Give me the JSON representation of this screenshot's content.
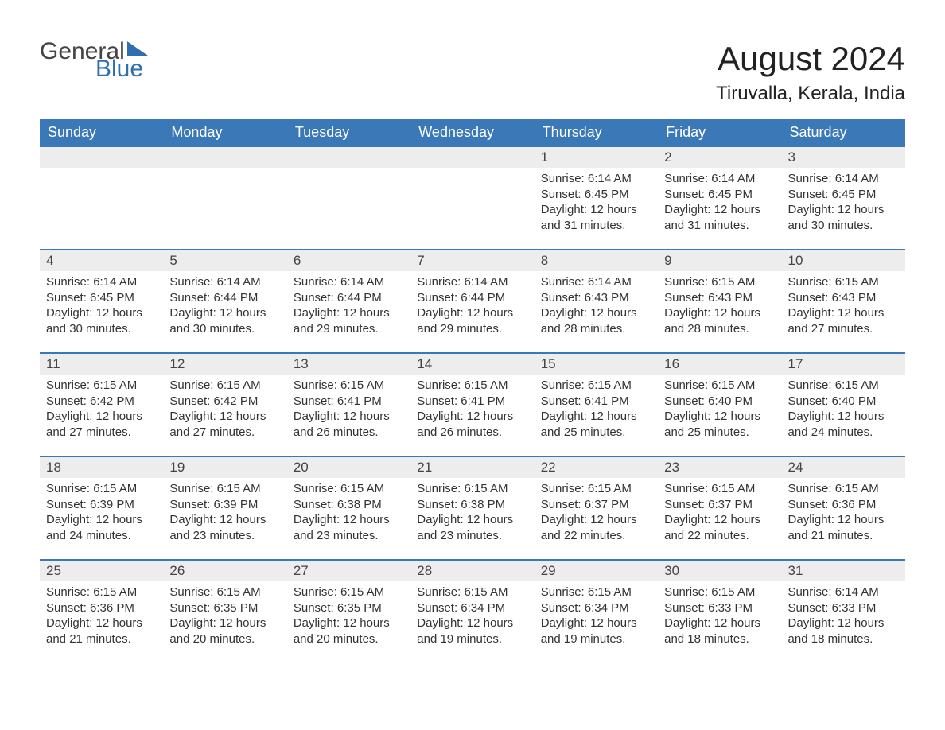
{
  "logo": {
    "word1": "General",
    "word2": "Blue",
    "word1_color": "#444444",
    "word2_color": "#2f6fb0",
    "triangle_color": "#2f6fb0"
  },
  "title": "August 2024",
  "location": "Tiruvalla, Kerala, India",
  "colors": {
    "header_bg": "#3a78b8",
    "header_text": "#ffffff",
    "week_border": "#3a78b8",
    "daynum_bg": "#ededed",
    "text": "#333333",
    "background": "#ffffff"
  },
  "fonts": {
    "title_size": 42,
    "location_size": 24,
    "weekday_size": 18,
    "daynum_size": 17,
    "body_size": 15
  },
  "weekdays": [
    "Sunday",
    "Monday",
    "Tuesday",
    "Wednesday",
    "Thursday",
    "Friday",
    "Saturday"
  ],
  "weeks": [
    [
      null,
      null,
      null,
      null,
      {
        "day": "1",
        "sunrise": "Sunrise: 6:14 AM",
        "sunset": "Sunset: 6:45 PM",
        "daylight1": "Daylight: 12 hours",
        "daylight2": "and 31 minutes."
      },
      {
        "day": "2",
        "sunrise": "Sunrise: 6:14 AM",
        "sunset": "Sunset: 6:45 PM",
        "daylight1": "Daylight: 12 hours",
        "daylight2": "and 31 minutes."
      },
      {
        "day": "3",
        "sunrise": "Sunrise: 6:14 AM",
        "sunset": "Sunset: 6:45 PM",
        "daylight1": "Daylight: 12 hours",
        "daylight2": "and 30 minutes."
      }
    ],
    [
      {
        "day": "4",
        "sunrise": "Sunrise: 6:14 AM",
        "sunset": "Sunset: 6:45 PM",
        "daylight1": "Daylight: 12 hours",
        "daylight2": "and 30 minutes."
      },
      {
        "day": "5",
        "sunrise": "Sunrise: 6:14 AM",
        "sunset": "Sunset: 6:44 PM",
        "daylight1": "Daylight: 12 hours",
        "daylight2": "and 30 minutes."
      },
      {
        "day": "6",
        "sunrise": "Sunrise: 6:14 AM",
        "sunset": "Sunset: 6:44 PM",
        "daylight1": "Daylight: 12 hours",
        "daylight2": "and 29 minutes."
      },
      {
        "day": "7",
        "sunrise": "Sunrise: 6:14 AM",
        "sunset": "Sunset: 6:44 PM",
        "daylight1": "Daylight: 12 hours",
        "daylight2": "and 29 minutes."
      },
      {
        "day": "8",
        "sunrise": "Sunrise: 6:14 AM",
        "sunset": "Sunset: 6:43 PM",
        "daylight1": "Daylight: 12 hours",
        "daylight2": "and 28 minutes."
      },
      {
        "day": "9",
        "sunrise": "Sunrise: 6:15 AM",
        "sunset": "Sunset: 6:43 PM",
        "daylight1": "Daylight: 12 hours",
        "daylight2": "and 28 minutes."
      },
      {
        "day": "10",
        "sunrise": "Sunrise: 6:15 AM",
        "sunset": "Sunset: 6:43 PM",
        "daylight1": "Daylight: 12 hours",
        "daylight2": "and 27 minutes."
      }
    ],
    [
      {
        "day": "11",
        "sunrise": "Sunrise: 6:15 AM",
        "sunset": "Sunset: 6:42 PM",
        "daylight1": "Daylight: 12 hours",
        "daylight2": "and 27 minutes."
      },
      {
        "day": "12",
        "sunrise": "Sunrise: 6:15 AM",
        "sunset": "Sunset: 6:42 PM",
        "daylight1": "Daylight: 12 hours",
        "daylight2": "and 27 minutes."
      },
      {
        "day": "13",
        "sunrise": "Sunrise: 6:15 AM",
        "sunset": "Sunset: 6:41 PM",
        "daylight1": "Daylight: 12 hours",
        "daylight2": "and 26 minutes."
      },
      {
        "day": "14",
        "sunrise": "Sunrise: 6:15 AM",
        "sunset": "Sunset: 6:41 PM",
        "daylight1": "Daylight: 12 hours",
        "daylight2": "and 26 minutes."
      },
      {
        "day": "15",
        "sunrise": "Sunrise: 6:15 AM",
        "sunset": "Sunset: 6:41 PM",
        "daylight1": "Daylight: 12 hours",
        "daylight2": "and 25 minutes."
      },
      {
        "day": "16",
        "sunrise": "Sunrise: 6:15 AM",
        "sunset": "Sunset: 6:40 PM",
        "daylight1": "Daylight: 12 hours",
        "daylight2": "and 25 minutes."
      },
      {
        "day": "17",
        "sunrise": "Sunrise: 6:15 AM",
        "sunset": "Sunset: 6:40 PM",
        "daylight1": "Daylight: 12 hours",
        "daylight2": "and 24 minutes."
      }
    ],
    [
      {
        "day": "18",
        "sunrise": "Sunrise: 6:15 AM",
        "sunset": "Sunset: 6:39 PM",
        "daylight1": "Daylight: 12 hours",
        "daylight2": "and 24 minutes."
      },
      {
        "day": "19",
        "sunrise": "Sunrise: 6:15 AM",
        "sunset": "Sunset: 6:39 PM",
        "daylight1": "Daylight: 12 hours",
        "daylight2": "and 23 minutes."
      },
      {
        "day": "20",
        "sunrise": "Sunrise: 6:15 AM",
        "sunset": "Sunset: 6:38 PM",
        "daylight1": "Daylight: 12 hours",
        "daylight2": "and 23 minutes."
      },
      {
        "day": "21",
        "sunrise": "Sunrise: 6:15 AM",
        "sunset": "Sunset: 6:38 PM",
        "daylight1": "Daylight: 12 hours",
        "daylight2": "and 23 minutes."
      },
      {
        "day": "22",
        "sunrise": "Sunrise: 6:15 AM",
        "sunset": "Sunset: 6:37 PM",
        "daylight1": "Daylight: 12 hours",
        "daylight2": "and 22 minutes."
      },
      {
        "day": "23",
        "sunrise": "Sunrise: 6:15 AM",
        "sunset": "Sunset: 6:37 PM",
        "daylight1": "Daylight: 12 hours",
        "daylight2": "and 22 minutes."
      },
      {
        "day": "24",
        "sunrise": "Sunrise: 6:15 AM",
        "sunset": "Sunset: 6:36 PM",
        "daylight1": "Daylight: 12 hours",
        "daylight2": "and 21 minutes."
      }
    ],
    [
      {
        "day": "25",
        "sunrise": "Sunrise: 6:15 AM",
        "sunset": "Sunset: 6:36 PM",
        "daylight1": "Daylight: 12 hours",
        "daylight2": "and 21 minutes."
      },
      {
        "day": "26",
        "sunrise": "Sunrise: 6:15 AM",
        "sunset": "Sunset: 6:35 PM",
        "daylight1": "Daylight: 12 hours",
        "daylight2": "and 20 minutes."
      },
      {
        "day": "27",
        "sunrise": "Sunrise: 6:15 AM",
        "sunset": "Sunset: 6:35 PM",
        "daylight1": "Daylight: 12 hours",
        "daylight2": "and 20 minutes."
      },
      {
        "day": "28",
        "sunrise": "Sunrise: 6:15 AM",
        "sunset": "Sunset: 6:34 PM",
        "daylight1": "Daylight: 12 hours",
        "daylight2": "and 19 minutes."
      },
      {
        "day": "29",
        "sunrise": "Sunrise: 6:15 AM",
        "sunset": "Sunset: 6:34 PM",
        "daylight1": "Daylight: 12 hours",
        "daylight2": "and 19 minutes."
      },
      {
        "day": "30",
        "sunrise": "Sunrise: 6:15 AM",
        "sunset": "Sunset: 6:33 PM",
        "daylight1": "Daylight: 12 hours",
        "daylight2": "and 18 minutes."
      },
      {
        "day": "31",
        "sunrise": "Sunrise: 6:14 AM",
        "sunset": "Sunset: 6:33 PM",
        "daylight1": "Daylight: 12 hours",
        "daylight2": "and 18 minutes."
      }
    ]
  ]
}
